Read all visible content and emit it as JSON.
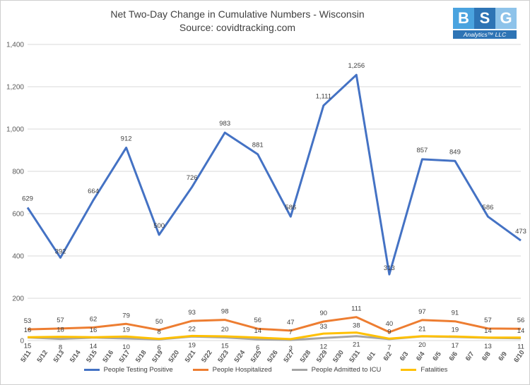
{
  "title": "Net Two-Day Change in Cumulative Numbers - Wisconsin",
  "subtitle": "Source: covidtracking.com",
  "logo": {
    "letters": [
      "B",
      "S",
      "G"
    ],
    "tagline": "Analytics™ LLC",
    "colors": [
      "#4aa3df",
      "#2e74b5",
      "#8ec3ea"
    ]
  },
  "chart_data": {
    "type": "line",
    "title": "Net Two-Day Change in Cumulative Numbers - Wisconsin",
    "subtitle": "Source: covidtracking.com",
    "x": [
      "5/11",
      "5/12",
      "5/13",
      "5/14",
      "5/15",
      "5/16",
      "5/17",
      "5/18",
      "5/19",
      "5/20",
      "5/21",
      "5/22",
      "5/23",
      "5/24",
      "5/25",
      "5/26",
      "5/27",
      "5/28",
      "5/29",
      "5/30",
      "5/31",
      "6/1",
      "6/2",
      "6/3",
      "6/4",
      "6/5",
      "6/6",
      "6/7",
      "6/8",
      "6/9",
      "6/10"
    ],
    "ylim": [
      0,
      1400
    ],
    "yticks": [
      0,
      200,
      400,
      600,
      800,
      1000,
      1200,
      1400
    ],
    "ytick_labels": [
      "0",
      "200",
      "400",
      "600",
      "800",
      "1,000",
      "1,200",
      "1,400"
    ],
    "grid": true,
    "legend_position": "bottom",
    "series": [
      {
        "name": "People Testing Positive",
        "color": "#4472c4",
        "points": [
          [
            0,
            629
          ],
          [
            2,
            392
          ],
          [
            4,
            664
          ],
          [
            6,
            912
          ],
          [
            8,
            500
          ],
          [
            10,
            726
          ],
          [
            12,
            983
          ],
          [
            14,
            881
          ],
          [
            16,
            586
          ],
          [
            18,
            1111
          ],
          [
            20,
            1256
          ],
          [
            22,
            313
          ],
          [
            24,
            857
          ],
          [
            26,
            849
          ],
          [
            28,
            586
          ],
          [
            30,
            473
          ]
        ],
        "labels": [
          "629",
          "392",
          "664",
          "912",
          "500",
          "726",
          "983",
          "881",
          "586",
          "1,111",
          "1,256",
          "313",
          "857",
          "849",
          "586",
          "473"
        ]
      },
      {
        "name": "People Hospitalized",
        "color": "#ed7d31",
        "points": [
          [
            0,
            53
          ],
          [
            2,
            57
          ],
          [
            4,
            62
          ],
          [
            6,
            79
          ],
          [
            8,
            50
          ],
          [
            10,
            93
          ],
          [
            12,
            98
          ],
          [
            14,
            56
          ],
          [
            16,
            47
          ],
          [
            18,
            90
          ],
          [
            20,
            111
          ],
          [
            22,
            40
          ],
          [
            24,
            97
          ],
          [
            26,
            91
          ],
          [
            28,
            57
          ],
          [
            30,
            56
          ]
        ],
        "labels": [
          "53",
          "57",
          "62",
          "79",
          "50",
          "93",
          "98",
          "56",
          "47",
          "90",
          "111",
          "40",
          "97",
          "91",
          "57",
          "56"
        ]
      },
      {
        "name": "People Admitted to ICU",
        "color": "#a5a5a5",
        "points": [
          [
            0,
            15
          ],
          [
            2,
            8
          ],
          [
            4,
            14
          ],
          [
            6,
            10
          ],
          [
            8,
            6
          ],
          [
            10,
            19
          ],
          [
            12,
            15
          ],
          [
            14,
            6
          ],
          [
            16,
            3
          ],
          [
            18,
            12
          ],
          [
            20,
            21
          ],
          [
            22,
            7
          ],
          [
            24,
            20
          ],
          [
            26,
            17
          ],
          [
            28,
            13
          ],
          [
            30,
            11
          ]
        ],
        "labels": [
          "15",
          "8",
          "14",
          "10",
          "6",
          "19",
          "15",
          "6",
          "3",
          "12",
          "21",
          "7",
          "20",
          "17",
          "13",
          "11"
        ]
      },
      {
        "name": "Fatalities",
        "color": "#ffc000",
        "points": [
          [
            0,
            16
          ],
          [
            2,
            18
          ],
          [
            4,
            16
          ],
          [
            6,
            19
          ],
          [
            8,
            8
          ],
          [
            10,
            22
          ],
          [
            12,
            20
          ],
          [
            14,
            14
          ],
          [
            16,
            7
          ],
          [
            18,
            33
          ],
          [
            20,
            38
          ],
          [
            22,
            9
          ],
          [
            24,
            21
          ],
          [
            26,
            19
          ],
          [
            28,
            14
          ],
          [
            30,
            14
          ]
        ],
        "labels": [
          "16",
          "18",
          "16",
          "19",
          "8",
          "22",
          "20",
          "14",
          "7",
          "33",
          "38",
          "9",
          "21",
          "19",
          "14",
          "14"
        ]
      }
    ]
  }
}
